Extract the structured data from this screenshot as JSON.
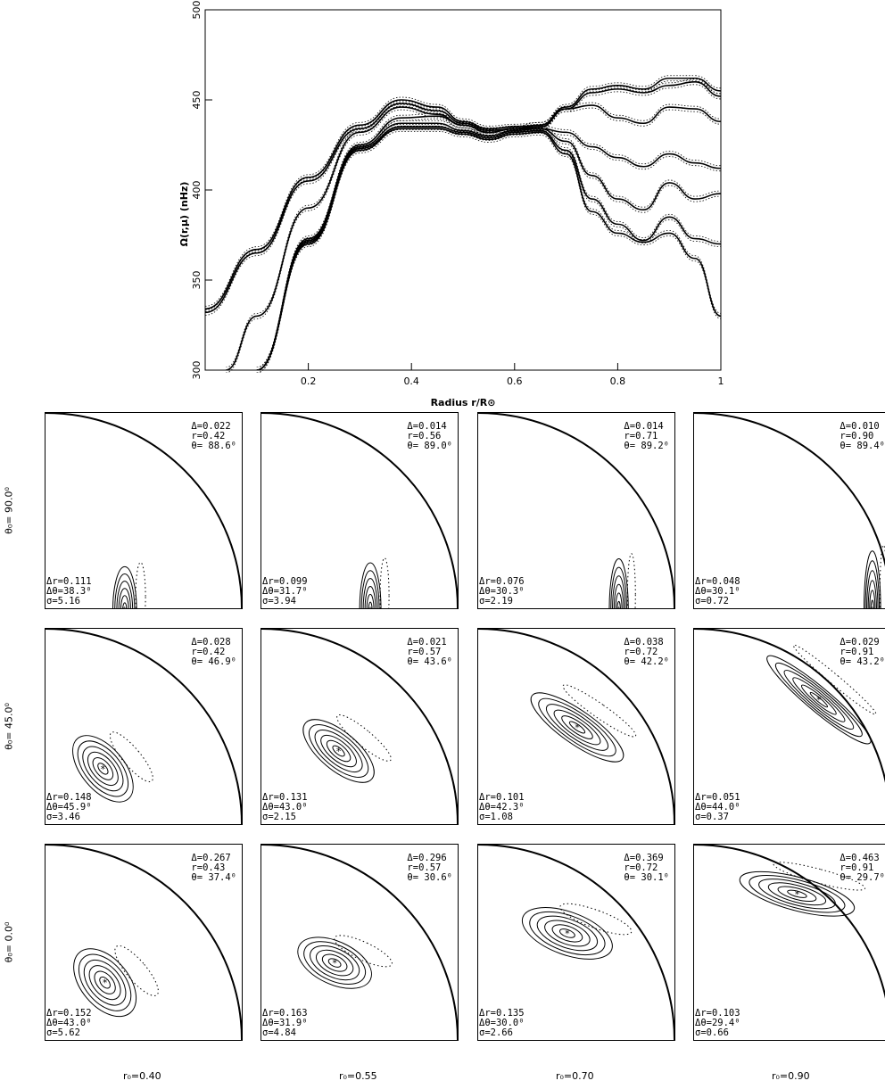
{
  "chart_data": [
    {
      "type": "line",
      "xlabel": "Radius r/R⊙",
      "ylabel": "Ω(r,μ) (nHz)",
      "xlim": [
        0.0,
        1.0
      ],
      "ylim": [
        300,
        500
      ],
      "xticks": [
        "0.2",
        "0.4",
        "0.6",
        "0.8",
        "1"
      ],
      "yticks": [
        "300",
        "350",
        "400",
        "450",
        "500"
      ],
      "grid": false,
      "series": [
        {
          "style": "solid",
          "x": [
            0.04,
            0.1,
            0.2,
            0.3,
            0.38,
            0.45,
            0.5,
            0.55,
            0.6,
            0.65,
            0.7,
            0.75,
            0.8,
            0.85,
            0.9,
            0.95,
            1.0
          ],
          "values": [
            300,
            330,
            390,
            432,
            446,
            442,
            436,
            432,
            434,
            436,
            446,
            456,
            458,
            456,
            462,
            462,
            455
          ]
        },
        {
          "style": "solid",
          "x": [
            0.0,
            0.1,
            0.2,
            0.3,
            0.38,
            0.45,
            0.5,
            0.55,
            0.6,
            0.65,
            0.7,
            0.75,
            0.8,
            0.85,
            0.9,
            0.95,
            1.0
          ],
          "values": [
            332,
            365,
            405,
            434,
            448,
            444,
            437,
            433,
            434,
            435,
            445,
            454,
            456,
            454,
            458,
            460,
            452
          ]
        },
        {
          "style": "solid",
          "x": [
            0.0,
            0.1,
            0.2,
            0.3,
            0.38,
            0.45,
            0.5,
            0.55,
            0.6,
            0.65,
            0.7,
            0.75,
            0.8,
            0.85,
            0.9,
            0.95,
            1.0
          ],
          "values": [
            334,
            367,
            407,
            436,
            450,
            446,
            438,
            434,
            435,
            436,
            445,
            447,
            440,
            437,
            446,
            445,
            438
          ]
        },
        {
          "style": "solid",
          "x": [
            0.1,
            0.2,
            0.3,
            0.38,
            0.45,
            0.5,
            0.55,
            0.6,
            0.65,
            0.7,
            0.75,
            0.8,
            0.85,
            0.9,
            0.95,
            1.0
          ],
          "values": [
            300,
            373,
            425,
            440,
            441,
            436,
            432,
            434,
            434,
            432,
            424,
            418,
            413,
            420,
            415,
            412
          ]
        },
        {
          "style": "solid",
          "x": [
            0.1,
            0.2,
            0.3,
            0.38,
            0.45,
            0.5,
            0.55,
            0.6,
            0.65,
            0.7,
            0.75,
            0.8,
            0.85,
            0.9,
            0.95,
            1.0
          ],
          "values": [
            300,
            372,
            424,
            437,
            437,
            433,
            430,
            433,
            434,
            427,
            408,
            395,
            389,
            404,
            395,
            398
          ]
        },
        {
          "style": "solid",
          "x": [
            0.1,
            0.2,
            0.3,
            0.38,
            0.45,
            0.5,
            0.55,
            0.6,
            0.65,
            0.7,
            0.75,
            0.8,
            0.85,
            0.9,
            0.95,
            1.0
          ],
          "values": [
            300,
            371,
            423,
            435,
            435,
            432,
            429,
            432,
            433,
            422,
            395,
            381,
            372,
            385,
            373,
            370
          ]
        },
        {
          "style": "solid",
          "x": [
            0.1,
            0.2,
            0.3,
            0.38,
            0.45,
            0.5,
            0.55,
            0.6,
            0.65,
            0.7,
            0.75,
            0.8,
            0.85,
            0.9,
            0.95,
            1.0
          ],
          "values": [
            300,
            370,
            422,
            434,
            434,
            431,
            428,
            431,
            432,
            420,
            388,
            376,
            371,
            376,
            362,
            330
          ]
        }
      ]
    },
    {
      "type": "contour",
      "row_labels": [
        "θ₀= 90.0⁰",
        "θ₀= 45.0⁰",
        "θ₀=  0.0⁰"
      ],
      "col_labels": [
        "r₀=0.40",
        "r₀=0.55",
        "r₀=0.70",
        "r₀=0.90"
      ],
      "panels": [
        [
          {
            "delta": "Δ=0.022",
            "r": "r=0.42",
            "theta": "θ= 88.6⁰",
            "dr": "Δr=0.111",
            "dtheta": "Δθ=38.3⁰",
            "sigma": "σ=5.16",
            "cx": 0.4,
            "cy": 0.0,
            "cw": 0.05,
            "ch": 0.22,
            "rot": 0,
            "n": 6
          },
          {
            "delta": "Δ=0.014",
            "r": "r=0.56",
            "theta": "θ= 89.0⁰",
            "dr": "Δr=0.099",
            "dtheta": "Δθ=31.7⁰",
            "sigma": "σ=3.94",
            "cx": 0.55,
            "cy": 0.0,
            "cw": 0.045,
            "ch": 0.24,
            "rot": 0,
            "n": 6
          },
          {
            "delta": "Δ=0.014",
            "r": "r=0.71",
            "theta": "θ= 89.2⁰",
            "dr": "Δr=0.076",
            "dtheta": "Δθ=30.3⁰",
            "sigma": "σ=2.19",
            "cx": 0.71,
            "cy": 0.0,
            "cw": 0.04,
            "ch": 0.26,
            "rot": 0,
            "n": 6
          },
          {
            "delta": "Δ=0.010",
            "r": "r=0.90",
            "theta": "θ= 89.4⁰",
            "dr": "Δr=0.048",
            "dtheta": "Δθ=30.1⁰",
            "sigma": "σ=0.72",
            "cx": 0.9,
            "cy": 0.0,
            "cw": 0.035,
            "ch": 0.3,
            "rot": 0,
            "n": 6
          }
        ],
        [
          {
            "delta": "Δ=0.028",
            "r": "r=0.42",
            "theta": "θ= 46.9⁰",
            "dr": "Δr=0.148",
            "dtheta": "Δθ=45.9⁰",
            "sigma": "σ=3.46",
            "cx": 0.29,
            "cy": 0.29,
            "cw": 0.09,
            "ch": 0.2,
            "rot": -40,
            "n": 6
          },
          {
            "delta": "Δ=0.021",
            "r": "r=0.57",
            "theta": "θ= 43.6⁰",
            "dr": "Δr=0.131",
            "dtheta": "Δθ=43.0⁰",
            "sigma": "σ=2.15",
            "cx": 0.39,
            "cy": 0.38,
            "cw": 0.08,
            "ch": 0.22,
            "rot": -50,
            "n": 6
          },
          {
            "delta": "Δ=0.038",
            "r": "r=0.72",
            "theta": "θ= 42.2⁰",
            "dr": "Δr=0.101",
            "dtheta": "Δθ=42.3⁰",
            "sigma": "σ=1.08",
            "cx": 0.5,
            "cy": 0.5,
            "cw": 0.07,
            "ch": 0.28,
            "rot": -55,
            "n": 6
          },
          {
            "delta": "Δ=0.029",
            "r": "r=0.91",
            "theta": "θ= 43.2⁰",
            "dr": "Δr=0.051",
            "dtheta": "Δθ=44.0⁰",
            "sigma": "σ=0.37",
            "cx": 0.63,
            "cy": 0.64,
            "cw": 0.05,
            "ch": 0.34,
            "rot": -50,
            "n": 6
          }
        ],
        [
          {
            "delta": "Δ=0.267",
            "r": "r=0.43",
            "theta": "θ= 37.4⁰",
            "dr": "Δr=0.152",
            "dtheta": "Δθ=43.0⁰",
            "sigma": "σ=5.62",
            "cx": 0.3,
            "cy": 0.3,
            "cw": 0.1,
            "ch": 0.2,
            "rot": -40,
            "n": 6
          },
          {
            "delta": "Δ=0.296",
            "r": "r=0.57",
            "theta": "θ= 30.6⁰",
            "dr": "Δr=0.163",
            "dtheta": "Δθ=31.9⁰",
            "sigma": "σ=4.84",
            "cx": 0.37,
            "cy": 0.4,
            "cw": 0.09,
            "ch": 0.2,
            "rot": -65,
            "n": 6
          },
          {
            "delta": "Δ=0.369",
            "r": "r=0.72",
            "theta": "θ= 30.1⁰",
            "dr": "Δr=0.135",
            "dtheta": "Δθ=30.0⁰",
            "sigma": "σ=2.66",
            "cx": 0.45,
            "cy": 0.55,
            "cw": 0.09,
            "ch": 0.24,
            "rot": -70,
            "n": 6
          },
          {
            "delta": "Δ=0.463",
            "r": "r=0.91",
            "theta": "θ= 29.7⁰",
            "dr": "Δr=0.103",
            "dtheta": "Δθ=29.4⁰",
            "sigma": "σ=0.66",
            "cx": 0.52,
            "cy": 0.75,
            "cw": 0.07,
            "ch": 0.3,
            "rot": -75,
            "n": 6
          }
        ]
      ]
    }
  ]
}
